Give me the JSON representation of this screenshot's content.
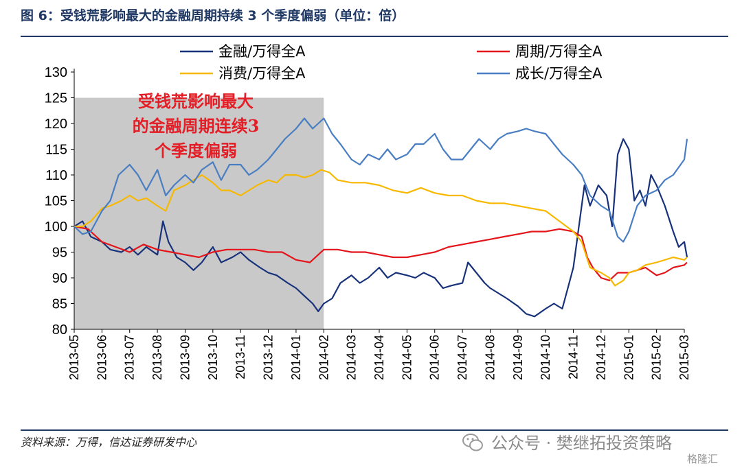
{
  "figure_title": "图 6：受钱荒影响最大的金融周期持续 3 个季度偏弱（单位：倍）",
  "source_note": "资料来源：万得，信达证券研发中心",
  "watermark": "公众号 · 樊继拓投资策略",
  "corner_logo": "格隆汇",
  "colors": {
    "finance": "#17317a",
    "cycle": "#e4141b",
    "consumer": "#f7b800",
    "growth": "#4a7ec2",
    "shade": "#c9c9c9",
    "title": "#1f3864",
    "annotation": "#e41e26"
  },
  "chart_data": {
    "type": "line",
    "title": "",
    "xlabel": "",
    "ylabel": "",
    "ylim": [
      80,
      130
    ],
    "yticks": [
      80,
      85,
      90,
      95,
      100,
      105,
      110,
      115,
      120,
      125,
      130
    ],
    "xticks": [
      "2013-05",
      "2013-06",
      "2013-07",
      "2013-08",
      "2013-09",
      "2013-10",
      "2013-11",
      "2013-12",
      "2014-01",
      "2014-02",
      "2014-03",
      "2014-04",
      "2014-05",
      "2014-06",
      "2014-07",
      "2014-08",
      "2014-09",
      "2014-10",
      "2014-11",
      "2014-12",
      "2015-01",
      "2015-02",
      "2015-03"
    ],
    "grid": false,
    "legend_position": "top",
    "shaded_region": {
      "from": "2013-05",
      "to": "2014-02",
      "label": [
        "受钱荒影响最大",
        "的金融周期连续3",
        "个季度偏弱"
      ]
    },
    "series": [
      {
        "name": "金融/万得全A",
        "color": "#17317a",
        "values": [
          [
            0,
            100
          ],
          [
            0.3,
            101
          ],
          [
            0.6,
            98
          ],
          [
            1,
            97
          ],
          [
            1.3,
            95.5
          ],
          [
            1.7,
            95
          ],
          [
            2,
            96
          ],
          [
            2.3,
            94.5
          ],
          [
            2.6,
            96
          ],
          [
            3,
            94.5
          ],
          [
            3.2,
            101
          ],
          [
            3.4,
            97
          ],
          [
            3.7,
            94
          ],
          [
            4,
            93
          ],
          [
            4.3,
            91.5
          ],
          [
            4.6,
            93
          ],
          [
            5,
            96
          ],
          [
            5.3,
            93
          ],
          [
            5.7,
            94
          ],
          [
            6,
            95
          ],
          [
            6.3,
            93.5
          ],
          [
            6.7,
            92
          ],
          [
            7,
            91
          ],
          [
            7.3,
            90.5
          ],
          [
            7.7,
            89
          ],
          [
            8,
            88
          ],
          [
            8.3,
            86.5
          ],
          [
            8.6,
            85
          ],
          [
            8.8,
            83.5
          ],
          [
            9,
            85
          ],
          [
            9.3,
            86
          ],
          [
            9.6,
            89
          ],
          [
            10,
            90.5
          ],
          [
            10.3,
            89
          ],
          [
            10.6,
            90
          ],
          [
            11,
            92
          ],
          [
            11.3,
            90
          ],
          [
            11.6,
            91
          ],
          [
            12,
            90.5
          ],
          [
            12.3,
            90
          ],
          [
            12.6,
            91
          ],
          [
            13,
            90
          ],
          [
            13.3,
            88
          ],
          [
            13.6,
            88.5
          ],
          [
            14,
            89
          ],
          [
            14.2,
            93
          ],
          [
            14.5,
            91
          ],
          [
            14.8,
            89
          ],
          [
            15,
            88
          ],
          [
            15.3,
            87
          ],
          [
            15.6,
            86
          ],
          [
            16,
            84.5
          ],
          [
            16.3,
            83
          ],
          [
            16.6,
            82.5
          ],
          [
            17,
            84
          ],
          [
            17.3,
            85
          ],
          [
            17.6,
            84
          ],
          [
            17.8,
            88
          ],
          [
            18,
            92
          ],
          [
            18.2,
            100
          ],
          [
            18.4,
            108
          ],
          [
            18.6,
            104
          ],
          [
            18.9,
            108
          ],
          [
            19.2,
            106
          ],
          [
            19.4,
            100
          ],
          [
            19.6,
            114
          ],
          [
            19.8,
            117
          ],
          [
            20,
            115
          ],
          [
            20.2,
            105
          ],
          [
            20.4,
            107
          ],
          [
            20.6,
            104
          ],
          [
            20.8,
            110
          ],
          [
            21,
            108
          ],
          [
            21.3,
            104
          ],
          [
            21.6,
            99
          ],
          [
            21.8,
            96
          ],
          [
            22,
            97
          ],
          [
            22.1,
            94
          ]
        ]
      },
      {
        "name": "周期/万得全A",
        "color": "#e4141b",
        "values": [
          [
            0,
            100
          ],
          [
            0.5,
            99.5
          ],
          [
            1,
            97
          ],
          [
            1.5,
            96
          ],
          [
            2,
            95
          ],
          [
            2.5,
            96.5
          ],
          [
            3,
            95.5
          ],
          [
            3.5,
            95
          ],
          [
            4,
            94.5
          ],
          [
            4.5,
            94
          ],
          [
            5,
            95
          ],
          [
            5.5,
            95.5
          ],
          [
            6,
            95.5
          ],
          [
            6.5,
            95.5
          ],
          [
            7,
            95
          ],
          [
            7.5,
            95
          ],
          [
            8,
            93.5
          ],
          [
            8.5,
            93
          ],
          [
            8.8,
            94.5
          ],
          [
            9,
            95.5
          ],
          [
            9.5,
            95.5
          ],
          [
            10,
            95
          ],
          [
            10.5,
            95
          ],
          [
            11,
            94.5
          ],
          [
            11.5,
            94
          ],
          [
            12,
            94
          ],
          [
            12.5,
            94.5
          ],
          [
            13,
            95
          ],
          [
            13.5,
            96
          ],
          [
            14,
            96.5
          ],
          [
            14.5,
            97
          ],
          [
            15,
            97.5
          ],
          [
            15.5,
            98
          ],
          [
            16,
            98.5
          ],
          [
            16.5,
            99
          ],
          [
            17,
            99
          ],
          [
            17.5,
            99.5
          ],
          [
            18,
            99
          ],
          [
            18.3,
            98
          ],
          [
            18.5,
            94
          ],
          [
            18.7,
            92
          ],
          [
            19,
            90
          ],
          [
            19.3,
            89.5
          ],
          [
            19.6,
            91
          ],
          [
            20,
            91
          ],
          [
            20.3,
            91.5
          ],
          [
            20.6,
            92
          ],
          [
            21,
            90.5
          ],
          [
            21.3,
            91
          ],
          [
            21.6,
            92
          ],
          [
            22,
            92.5
          ],
          [
            22.1,
            93
          ]
        ]
      },
      {
        "name": "消费/万得全A",
        "color": "#f7b800",
        "values": [
          [
            0,
            100
          ],
          [
            0.3,
            100
          ],
          [
            0.6,
            101
          ],
          [
            1,
            103.5
          ],
          [
            1.3,
            104
          ],
          [
            1.7,
            105
          ],
          [
            2,
            106
          ],
          [
            2.3,
            105
          ],
          [
            2.6,
            105.5
          ],
          [
            3,
            104
          ],
          [
            3.3,
            103
          ],
          [
            3.6,
            107
          ],
          [
            4,
            108
          ],
          [
            4.3,
            109
          ],
          [
            4.6,
            110
          ],
          [
            5,
            108.5
          ],
          [
            5.3,
            107
          ],
          [
            5.6,
            107
          ],
          [
            6,
            106
          ],
          [
            6.3,
            107
          ],
          [
            6.6,
            108
          ],
          [
            7,
            109
          ],
          [
            7.3,
            108.5
          ],
          [
            7.6,
            110
          ],
          [
            8,
            110
          ],
          [
            8.3,
            109.5
          ],
          [
            8.6,
            110
          ],
          [
            8.9,
            111
          ],
          [
            9.2,
            110.5
          ],
          [
            9.5,
            109
          ],
          [
            10,
            108.5
          ],
          [
            10.5,
            108.5
          ],
          [
            11,
            108
          ],
          [
            11.5,
            107
          ],
          [
            12,
            106.5
          ],
          [
            12.5,
            107.5
          ],
          [
            13,
            106.5
          ],
          [
            13.5,
            106
          ],
          [
            14,
            106
          ],
          [
            14.5,
            105
          ],
          [
            15,
            104.5
          ],
          [
            15.5,
            104.5
          ],
          [
            16,
            104
          ],
          [
            16.5,
            103.5
          ],
          [
            17,
            103
          ],
          [
            17.5,
            101
          ],
          [
            18,
            99
          ],
          [
            18.3,
            97
          ],
          [
            18.6,
            92
          ],
          [
            19,
            91
          ],
          [
            19.3,
            90
          ],
          [
            19.5,
            88.5
          ],
          [
            19.8,
            89.5
          ],
          [
            20,
            91
          ],
          [
            20.3,
            91.5
          ],
          [
            20.6,
            92.5
          ],
          [
            21,
            93
          ],
          [
            21.3,
            93.5
          ],
          [
            21.6,
            94
          ],
          [
            22,
            93.5
          ],
          [
            22.1,
            94
          ]
        ]
      },
      {
        "name": "成长/万得全A",
        "color": "#4a7ec2",
        "values": [
          [
            0,
            100
          ],
          [
            0.3,
            98.5
          ],
          [
            0.6,
            99
          ],
          [
            1,
            103
          ],
          [
            1.3,
            105
          ],
          [
            1.6,
            110
          ],
          [
            2,
            112
          ],
          [
            2.3,
            110
          ],
          [
            2.6,
            107
          ],
          [
            3,
            111
          ],
          [
            3.3,
            106
          ],
          [
            3.6,
            108
          ],
          [
            4,
            110
          ],
          [
            4.3,
            108.5
          ],
          [
            4.6,
            111
          ],
          [
            5,
            112.5
          ],
          [
            5.3,
            109
          ],
          [
            5.6,
            112
          ],
          [
            6,
            112
          ],
          [
            6.3,
            110
          ],
          [
            6.6,
            111
          ],
          [
            7,
            113
          ],
          [
            7.3,
            115
          ],
          [
            7.6,
            117
          ],
          [
            8,
            119
          ],
          [
            8.3,
            121
          ],
          [
            8.6,
            119
          ],
          [
            9,
            121
          ],
          [
            9.3,
            118
          ],
          [
            9.6,
            116
          ],
          [
            10,
            113
          ],
          [
            10.3,
            112
          ],
          [
            10.6,
            114
          ],
          [
            11,
            113
          ],
          [
            11.3,
            115
          ],
          [
            11.6,
            113
          ],
          [
            12,
            114
          ],
          [
            12.3,
            116
          ],
          [
            12.6,
            116
          ],
          [
            13,
            118
          ],
          [
            13.3,
            115
          ],
          [
            13.6,
            113
          ],
          [
            14,
            113
          ],
          [
            14.3,
            115
          ],
          [
            14.6,
            117
          ],
          [
            15,
            115
          ],
          [
            15.3,
            117
          ],
          [
            15.6,
            118
          ],
          [
            16,
            118.5
          ],
          [
            16.3,
            119
          ],
          [
            16.6,
            118.5
          ],
          [
            17,
            118
          ],
          [
            17.3,
            116
          ],
          [
            17.6,
            114
          ],
          [
            18,
            112
          ],
          [
            18.3,
            110
          ],
          [
            18.6,
            106
          ],
          [
            19,
            104
          ],
          [
            19.3,
            103
          ],
          [
            19.6,
            98
          ],
          [
            19.8,
            97
          ],
          [
            20,
            99
          ],
          [
            20.3,
            104
          ],
          [
            20.6,
            106
          ],
          [
            21,
            107
          ],
          [
            21.3,
            109
          ],
          [
            21.6,
            110
          ],
          [
            22,
            113
          ],
          [
            22.1,
            117
          ]
        ]
      }
    ]
  }
}
